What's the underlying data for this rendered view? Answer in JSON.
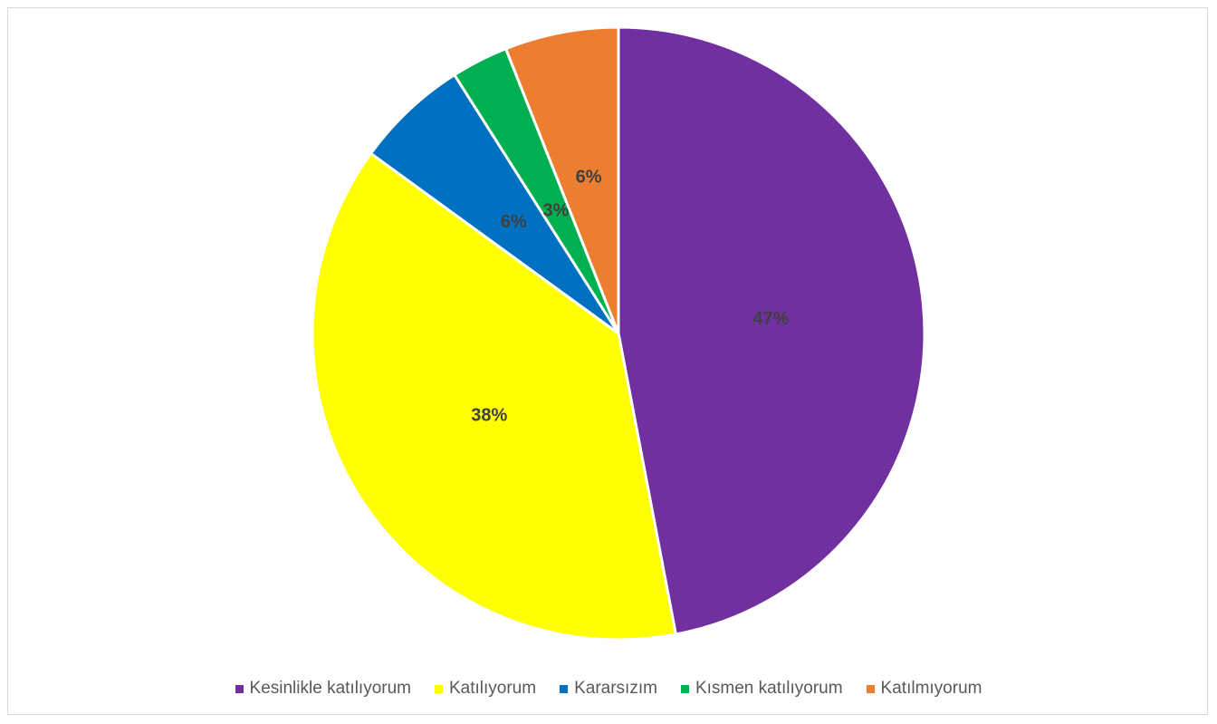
{
  "chart_data": {
    "type": "pie",
    "title": "",
    "start_angle_deg": 0,
    "direction": "clockwise",
    "legend_position": "bottom",
    "slices": [
      {
        "name": "Kesinlikle katılıyorum",
        "value": 47,
        "label": "47%",
        "color": "#7030A0"
      },
      {
        "name": "Katılıyorum",
        "value": 38,
        "label": "38%",
        "color": "#FFFF00"
      },
      {
        "name": "Kararsızım",
        "value": 6,
        "label": "6%",
        "color": "#0070C0"
      },
      {
        "name": "Kısmen katılıyorum",
        "value": 3,
        "label": "3%",
        "color": "#00B050"
      },
      {
        "name": "Katılmıyorum",
        "value": 6,
        "label": "6%",
        "color": "#ED7D31"
      }
    ]
  }
}
